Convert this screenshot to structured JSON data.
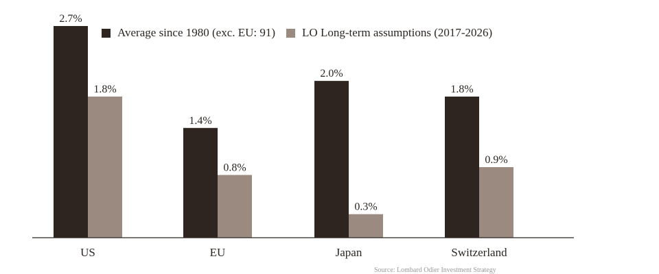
{
  "chart_data": {
    "type": "bar",
    "categories": [
      "US",
      "EU",
      "Japan",
      "Switzerland"
    ],
    "series": [
      {
        "name": "Average since 1980 (exc. EU: 91)",
        "values": [
          2.7,
          1.4,
          2.0,
          1.8
        ],
        "labels": [
          "2.7%",
          "1.4%",
          "2.0%",
          "1.8%"
        ],
        "color": "#2e2520"
      },
      {
        "name": "LO Long-term assumptions (2017-2026)",
        "values": [
          1.8,
          0.8,
          0.3,
          0.9
        ],
        "labels": [
          "1.8%",
          "0.8%",
          "0.3%",
          "0.9%"
        ],
        "color": "#9b8a80"
      }
    ],
    "ylim": [
      0,
      2.7
    ],
    "grid": false,
    "legend_position": "top",
    "source": "Source: Lombard Odier Investment Strategy"
  }
}
